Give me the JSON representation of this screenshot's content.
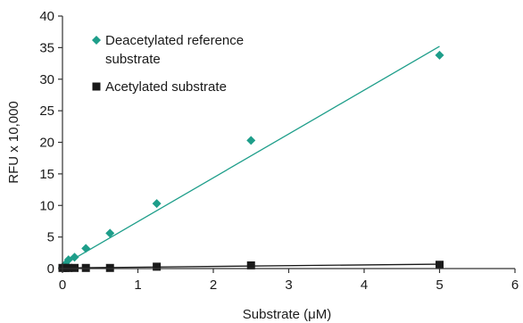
{
  "chart_data": {
    "type": "scatter",
    "title": "",
    "xlabel": "Substrate (μM)",
    "ylabel": "RFU x 10,000",
    "xlim": [
      0,
      6
    ],
    "ylim": [
      0,
      40
    ],
    "xticks": [
      "0",
      "1",
      "2",
      "3",
      "4",
      "5",
      "6"
    ],
    "yticks": [
      "0",
      "5",
      "10",
      "15",
      "20",
      "25",
      "30",
      "35",
      "40"
    ],
    "grid": false,
    "legend_position": "top-left",
    "series": [
      {
        "name": "Deacetylated reference substrate",
        "marker": "diamond",
        "color": "#1e9e8a",
        "x": [
          0,
          0.04,
          0.08,
          0.16,
          0.31,
          0.63,
          1.25,
          2.5,
          5.0
        ],
        "y": [
          0.2,
          0.7,
          1.4,
          1.8,
          3.2,
          5.6,
          10.3,
          20.3,
          33.8
        ],
        "trendline": {
          "x": [
            0,
            5.0
          ],
          "y": [
            0.5,
            35.2
          ]
        }
      },
      {
        "name": "Acetylated substrate",
        "marker": "square",
        "color": "#1a1a1a",
        "x": [
          0,
          0.04,
          0.08,
          0.16,
          0.31,
          0.63,
          1.25,
          2.5,
          5.0
        ],
        "y": [
          0.1,
          0.1,
          0.1,
          0.1,
          0.1,
          0.1,
          0.3,
          0.5,
          0.6
        ],
        "trendline": {
          "x": [
            0,
            5.0
          ],
          "y": [
            0.1,
            0.7
          ]
        }
      }
    ]
  }
}
